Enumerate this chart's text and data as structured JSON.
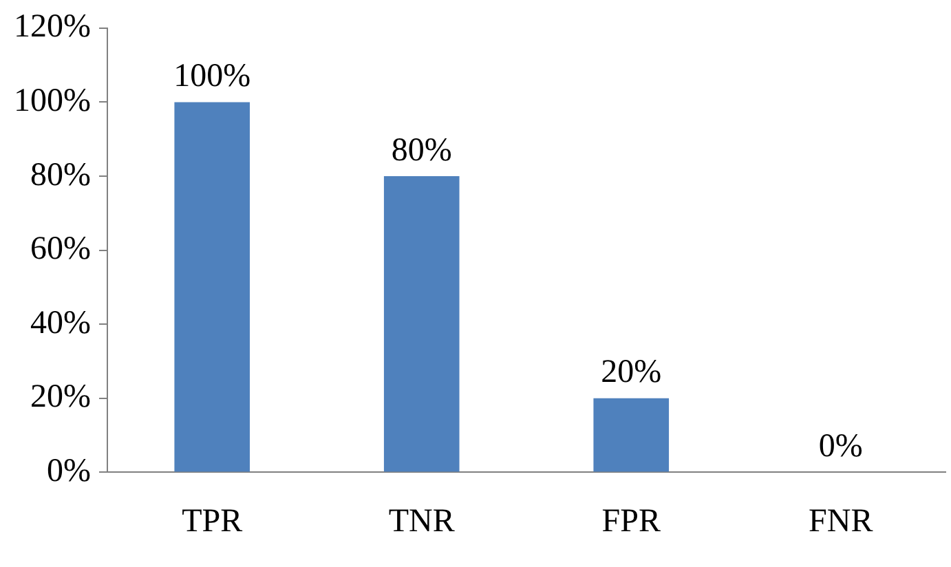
{
  "chart_data": {
    "type": "bar",
    "categories": [
      "TPR",
      "TNR",
      "FPR",
      "FNR"
    ],
    "values": [
      100,
      80,
      20,
      0
    ],
    "color": "#4f81bd",
    "value_labels": [
      "100%",
      "80%",
      "20%",
      "0%"
    ],
    "ylim": [
      0,
      120
    ],
    "yticks": [
      {
        "value": 0,
        "label": "0%"
      },
      {
        "value": 20,
        "label": "20%"
      },
      {
        "value": 40,
        "label": "40%"
      },
      {
        "value": 60,
        "label": "60%"
      },
      {
        "value": 80,
        "label": "80%"
      },
      {
        "value": 100,
        "label": "100%"
      },
      {
        "value": 120,
        "label": "120%"
      }
    ],
    "grid": false,
    "legend": false
  }
}
